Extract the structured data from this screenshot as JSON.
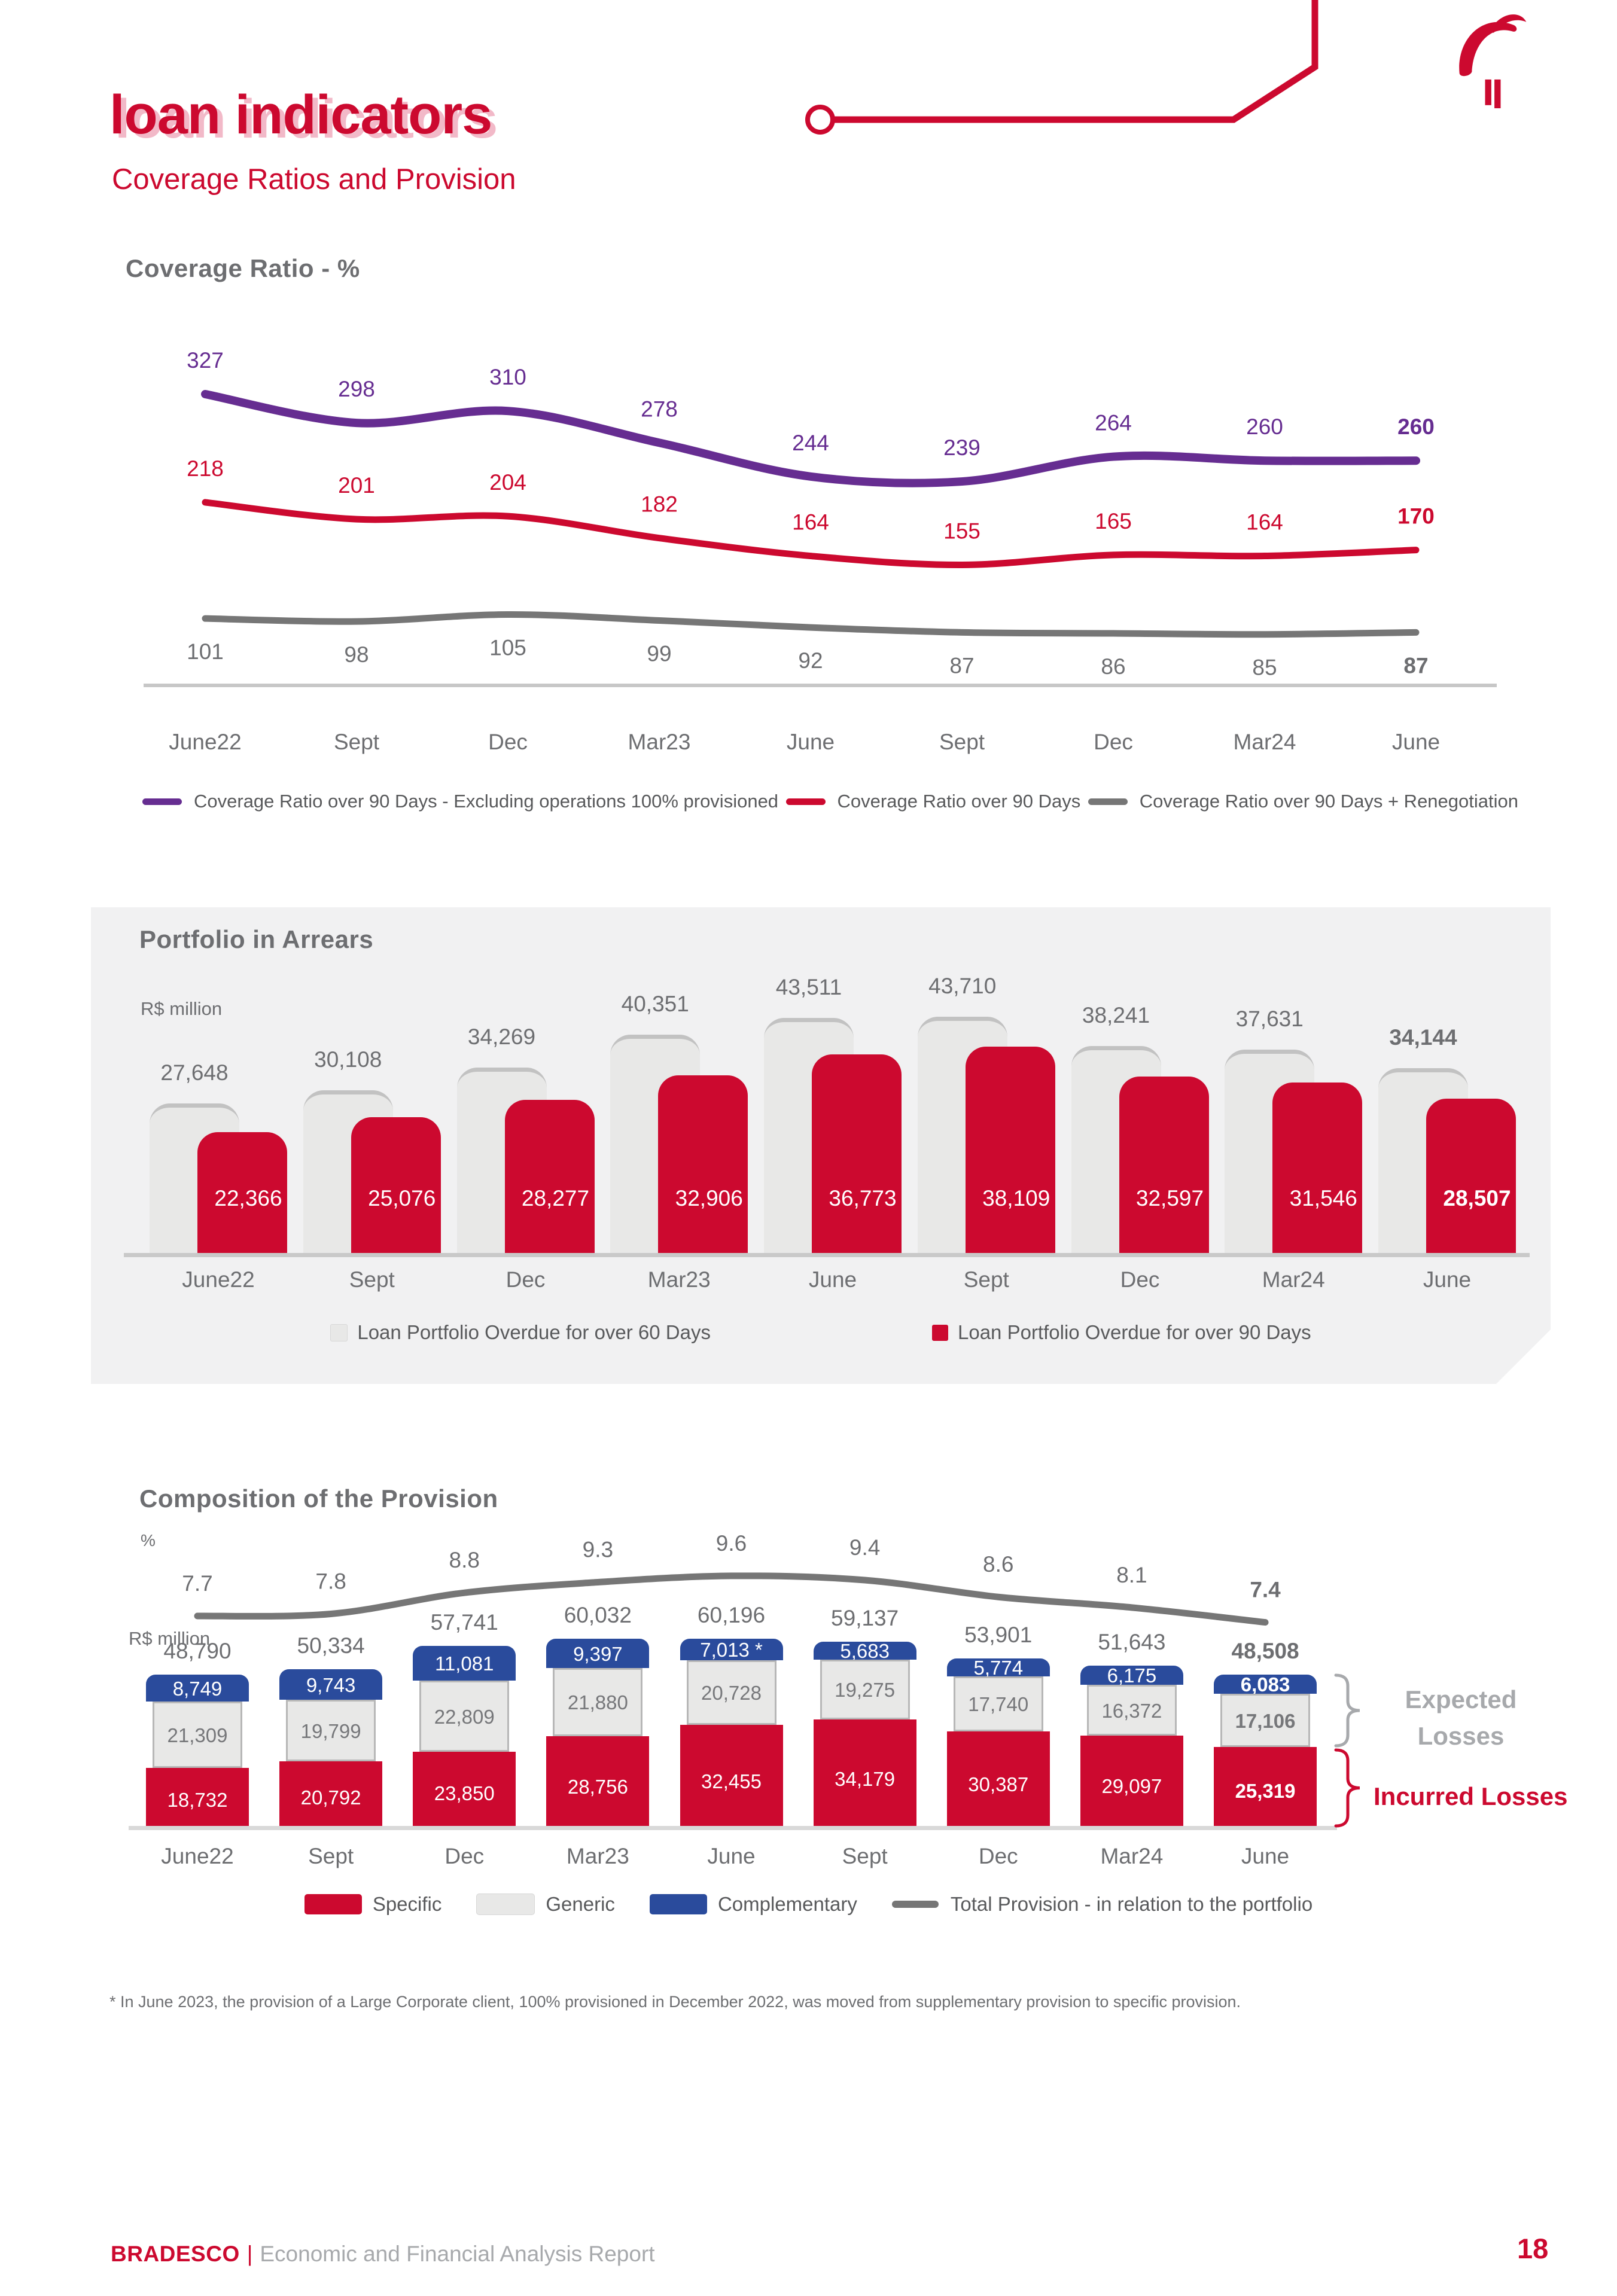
{
  "page": {
    "title": "loan indicators",
    "subtitle": "Coverage Ratios and Provision",
    "footnote": "* In June 2023, the provision of a Large Corporate client, 100% provisioned in December 2022, was moved from supplementary provision to specific provision.",
    "footer": {
      "brand": "BRADESCO",
      "separator": "|",
      "text": "Economic and Financial Analysis Report",
      "page_number": "18"
    }
  },
  "colors": {
    "brand_red": "#cc092f",
    "purple": "#662d91",
    "blue": "#2a4b9c",
    "heading_gray": "#6d6e71",
    "legend_text": "#58595b",
    "light_bar": "#e8e8e7",
    "light_bar_border": "#b7b7b7",
    "panel_bg": "#f1f1f2",
    "axis_gray": "#c9c9c9",
    "line_gray": "#767676",
    "expected_label_gray": "#a7a9ac",
    "title_shadow_pink": "#f2b9c8"
  },
  "chart_data": [
    {
      "type": "line",
      "title": "Coverage Ratio - %",
      "categories": [
        "June22",
        "Sept",
        "Dec",
        "Mar23",
        "June",
        "Sept",
        "Dec",
        "Mar24",
        "June"
      ],
      "grid": false,
      "legend_position": "bottom",
      "series": [
        {
          "name": "Coverage Ratio over 90 Days - Excluding operations 100% provisioned",
          "color": "#662d91",
          "label_position": "above",
          "values": [
            327,
            298,
            310,
            278,
            244,
            239,
            264,
            260,
            260
          ]
        },
        {
          "name": "Coverage Ratio over 90 Days",
          "color": "#cc092f",
          "label_position": "above",
          "values": [
            218,
            201,
            204,
            182,
            164,
            155,
            165,
            164,
            170
          ]
        },
        {
          "name": "Coverage Ratio over 90 Days + Renegotiation",
          "color": "#767676",
          "label_position": "below",
          "values": [
            101,
            98,
            105,
            99,
            92,
            87,
            86,
            85,
            87
          ]
        }
      ]
    },
    {
      "type": "bar",
      "title": "Portfolio in Arrears",
      "unit_label": "R$ million",
      "categories": [
        "June22",
        "Sept",
        "Dec",
        "Mar23",
        "June",
        "Sept",
        "Dec",
        "Mar24",
        "June"
      ],
      "legend_position": "bottom",
      "series": [
        {
          "name": "Loan Portfolio Overdue for over 60 Days",
          "color": "#e8e8e7",
          "values": [
            27648,
            30108,
            34269,
            40351,
            43511,
            43710,
            38241,
            37631,
            34144
          ]
        },
        {
          "name": "Loan Portfolio Overdue for over 90 Days",
          "color": "#cc092f",
          "values": [
            22366,
            25076,
            28277,
            32906,
            36773,
            38109,
            32597,
            31546,
            28507
          ]
        }
      ]
    },
    {
      "type": "stacked-bar-line",
      "title": "Composition of the Provision",
      "pct_axis_label": "%",
      "unit_label": "R$ million",
      "categories": [
        "June22",
        "Sept",
        "Dec",
        "Mar23",
        "June",
        "Sept",
        "Dec",
        "Mar24",
        "June"
      ],
      "legend_position": "bottom",
      "series": [
        {
          "name": "Specific",
          "color": "#cc092f",
          "values": [
            18732,
            20792,
            23850,
            28756,
            32455,
            34179,
            30387,
            29097,
            25319
          ]
        },
        {
          "name": "Generic",
          "color": "#e8e8e7",
          "values": [
            21309,
            19799,
            22809,
            21880,
            20728,
            19275,
            17740,
            16372,
            17106
          ]
        },
        {
          "name": "Complementary",
          "color": "#2a4b9c",
          "values": [
            8749,
            9743,
            11081,
            9397,
            7013,
            5683,
            5774,
            6175,
            6083
          ],
          "label_suffixes": [
            "",
            "",
            "",
            "",
            " *",
            "",
            "",
            "",
            ""
          ]
        }
      ],
      "totals": [
        48790,
        50334,
        57741,
        60032,
        60196,
        59137,
        53901,
        51643,
        48508
      ],
      "line_series": {
        "name": "Total Provision - in relation to the portfolio",
        "color": "#767676",
        "values": [
          7.7,
          7.8,
          8.8,
          9.3,
          9.6,
          9.4,
          8.6,
          8.1,
          7.4
        ]
      },
      "annotations": [
        {
          "label": "Expected Losses",
          "color": "#a7a9ac"
        },
        {
          "label": "Incurred Losses",
          "color": "#cc092f"
        }
      ]
    }
  ]
}
